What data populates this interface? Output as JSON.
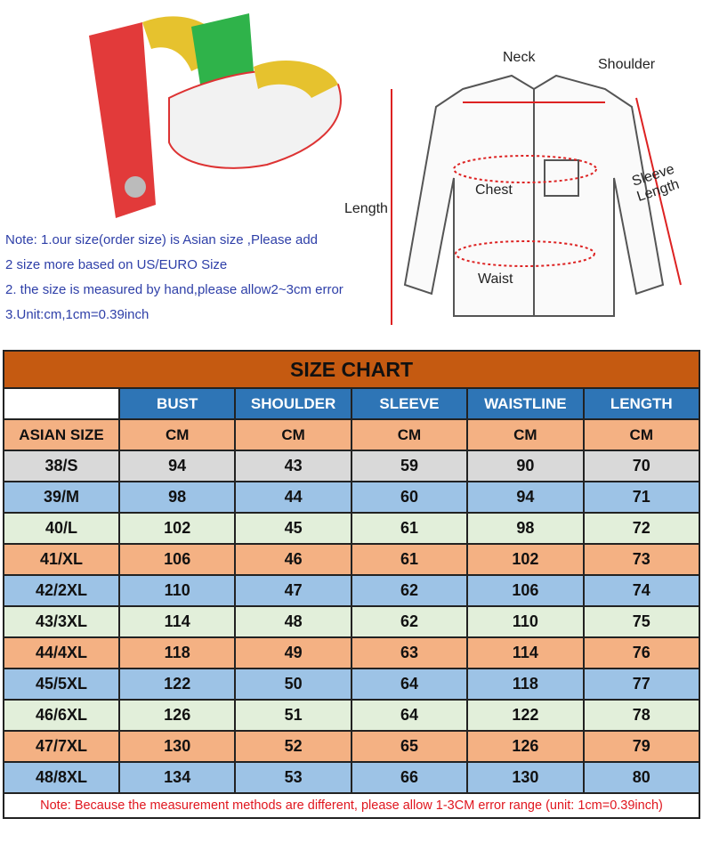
{
  "diagram": {
    "labels": {
      "neck": "Neck",
      "shoulder": "Shoulder",
      "chest": "Chest",
      "length": "Length",
      "sleeve": "Sleeve Length",
      "waist": "Waist"
    }
  },
  "notes": [
    "Note: 1.our size(order size) is Asian size ,Please add",
    "2 size more based on US/EURO Size",
    "2. the size is measured by hand,please allow2~3cm error",
    "3.Unit:cm,1cm=0.39inch"
  ],
  "chart": {
    "title": "SIZE CHART",
    "columns": [
      "BUST",
      "SHOULDER",
      "SLEEVE",
      "WAISTLINE",
      "LENGTH"
    ],
    "size_label": "ASIAN SIZE",
    "unit": "CM",
    "rows": [
      [
        "38/S",
        "94",
        "43",
        "59",
        "90",
        "70"
      ],
      [
        "39/M",
        "98",
        "44",
        "60",
        "94",
        "71"
      ],
      [
        "40/L",
        "102",
        "45",
        "61",
        "98",
        "72"
      ],
      [
        "41/XL",
        "106",
        "46",
        "61",
        "102",
        "73"
      ],
      [
        "42/2XL",
        "110",
        "47",
        "62",
        "106",
        "74"
      ],
      [
        "43/3XL",
        "114",
        "48",
        "62",
        "110",
        "75"
      ],
      [
        "44/4XL",
        "118",
        "49",
        "63",
        "114",
        "76"
      ],
      [
        "45/5XL",
        "122",
        "50",
        "64",
        "118",
        "77"
      ],
      [
        "46/6XL",
        "126",
        "51",
        "64",
        "122",
        "78"
      ],
      [
        "47/7XL",
        "130",
        "52",
        "65",
        "126",
        "79"
      ],
      [
        "48/8XL",
        "134",
        "53",
        "66",
        "130",
        "80"
      ]
    ],
    "note": "Note: Because the measurement methods are different, please allow 1-3CM error range (unit: 1cm=0.39inch)"
  }
}
